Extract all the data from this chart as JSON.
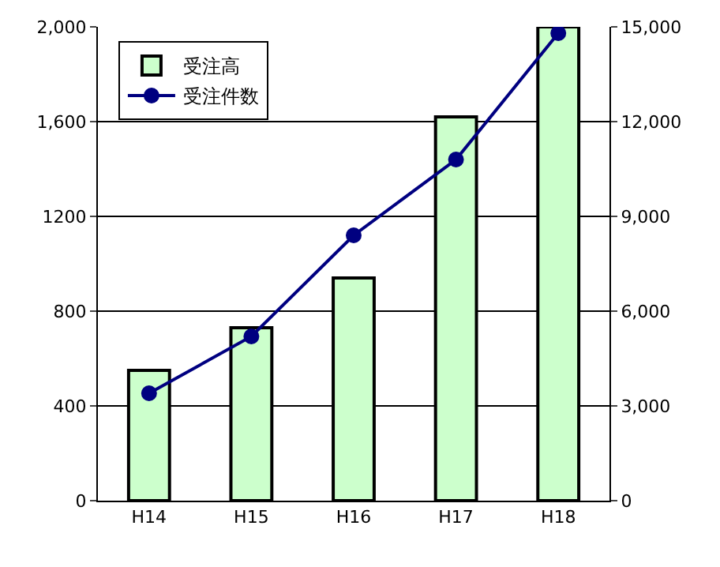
{
  "chart_data": {
    "type": "bar",
    "categories": [
      "H14",
      "H15",
      "H16",
      "H17",
      "H18"
    ],
    "series": [
      {
        "name": "受注高",
        "color": "#ccffcc",
        "values": [
          550,
          730,
          940,
          1620,
          2000
        ]
      },
      {
        "name": "受注件数",
        "type": "line",
        "axis": "y2",
        "color": "#000080",
        "marker": "circle",
        "values": [
          3400,
          5200,
          8400,
          10800,
          14800
        ]
      }
    ],
    "ylim": [
      0,
      2000
    ],
    "yticks": [
      0,
      400,
      800,
      1200,
      {
        "value": 1600,
        "label": "1,600"
      },
      {
        "value": 2000,
        "label": "2,000"
      }
    ],
    "y2lim": [
      0,
      15000
    ],
    "y2ticks": [
      0,
      {
        "value": 3000,
        "label": "3,000"
      },
      {
        "value": 6000,
        "label": "6,000"
      },
      {
        "value": 9000,
        "label": "9,000"
      },
      {
        "value": 12000,
        "label": "12,000"
      },
      {
        "value": 15000,
        "label": "15,000"
      }
    ],
    "grid": "y",
    "legend": "top left"
  }
}
